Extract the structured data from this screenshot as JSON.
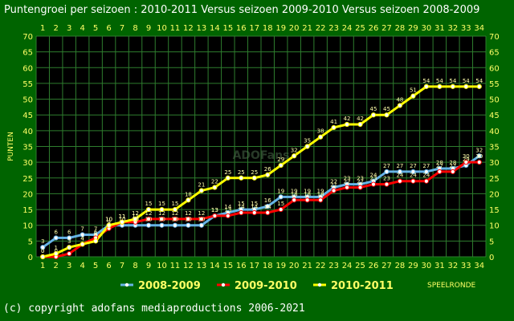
{
  "title": "Puntengroei per seizoen : 2010-2011 Versus seizoen 2009-2010 Versus seizoen 2008-2009",
  "footer": "(c) copyright adofans mediaproductions 2006-2021",
  "watermark": "ADOFans",
  "chart_data": {
    "type": "line",
    "title": "Puntengroei per seizoen : 2010-2011 Versus seizoen 2009-2010 Versus seizoen 2008-2009",
    "ylabel": "PUNTEN",
    "xlabel": "SPEELRONDE",
    "ylim": [
      0,
      70
    ],
    "yticks": [
      0,
      5,
      10,
      15,
      20,
      25,
      30,
      35,
      40,
      45,
      50,
      55,
      60,
      65,
      70
    ],
    "x": [
      1,
      2,
      3,
      4,
      5,
      6,
      7,
      8,
      9,
      10,
      11,
      12,
      13,
      14,
      15,
      16,
      17,
      18,
      19,
      20,
      21,
      22,
      23,
      24,
      25,
      26,
      27,
      28,
      29,
      30,
      31,
      32,
      33,
      34
    ],
    "grid": true,
    "legend_position": "bottom",
    "series": [
      {
        "name": "2008-2009",
        "color": "#66b3e6",
        "values": [
          3,
          6,
          6,
          7,
          7,
          10,
          10,
          10,
          10,
          10,
          10,
          10,
          10,
          13,
          14,
          15,
          15,
          16,
          19,
          19,
          19,
          19,
          22,
          23,
          23,
          24,
          27,
          27,
          27,
          27,
          28,
          28,
          29,
          32
        ]
      },
      {
        "name": "2009-2010",
        "color": "#ff0000",
        "values": [
          0,
          0,
          1,
          4,
          6,
          9,
          11,
          11,
          12,
          12,
          12,
          12,
          12,
          13,
          13,
          14,
          14,
          14,
          15,
          18,
          18,
          18,
          21,
          22,
          22,
          23,
          23,
          24,
          24,
          24,
          27,
          27,
          30,
          30
        ]
      },
      {
        "name": "2010-2011",
        "color": "#ffff00",
        "values": [
          0,
          1,
          3,
          4,
          5,
          10,
          11,
          12,
          15,
          15,
          15,
          18,
          21,
          22,
          25,
          25,
          25,
          26,
          29,
          32,
          35,
          38,
          41,
          42,
          42,
          45,
          45,
          48,
          51,
          54,
          54,
          54,
          54,
          54
        ]
      }
    ]
  }
}
